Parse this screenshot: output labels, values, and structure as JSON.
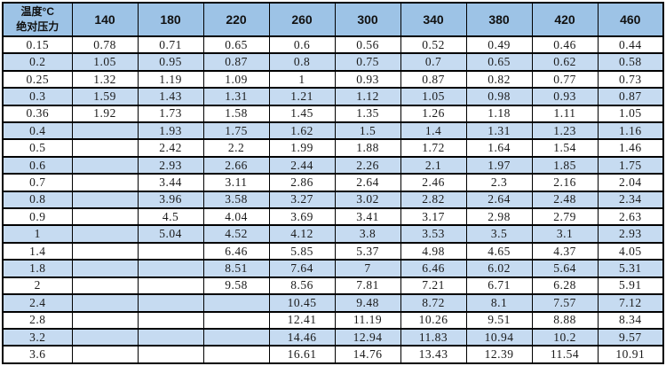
{
  "colors": {
    "header_bg": "#9dc3e6",
    "stripe_bg": "#c6dbf1",
    "border": "#000000",
    "text": "#1a1a1a"
  },
  "chart_data": {
    "type": "table",
    "title": "",
    "corner_header": {
      "line1": "温度°C",
      "line2": "绝对压力"
    },
    "column_headers": [
      "140",
      "180",
      "220",
      "260",
      "300",
      "340",
      "380",
      "420",
      "460"
    ],
    "rows": [
      {
        "label": "0.15",
        "values": [
          "0.78",
          "0.71",
          "0.65",
          "0.6",
          "0.56",
          "0.52",
          "0.49",
          "0.46",
          "0.44"
        ]
      },
      {
        "label": "0.2",
        "values": [
          "1.05",
          "0.95",
          "0.87",
          "0.8",
          "0.75",
          "0.7",
          "0.65",
          "0.62",
          "0.58"
        ]
      },
      {
        "label": "0.25",
        "values": [
          "1.32",
          "1.19",
          "1.09",
          "1",
          "0.93",
          "0.87",
          "0.82",
          "0.77",
          "0.73"
        ]
      },
      {
        "label": "0.3",
        "values": [
          "1.59",
          "1.43",
          "1.31",
          "1.21",
          "1.12",
          "1.05",
          "0.98",
          "0.93",
          "0.87"
        ]
      },
      {
        "label": "0.36",
        "values": [
          "1.92",
          "1.73",
          "1.58",
          "1.45",
          "1.35",
          "1.26",
          "1.18",
          "1.11",
          "1.05"
        ]
      },
      {
        "label": "0.4",
        "values": [
          "",
          "1.93",
          "1.75",
          "1.62",
          "1.5",
          "1.4",
          "1.31",
          "1.23",
          "1.16"
        ]
      },
      {
        "label": "0.5",
        "values": [
          "",
          "2.42",
          "2.2",
          "1.99",
          "1.88",
          "1.72",
          "1.64",
          "1.54",
          "1.46"
        ]
      },
      {
        "label": "0.6",
        "values": [
          "",
          "2.93",
          "2.66",
          "2.44",
          "2.26",
          "2.1",
          "1.97",
          "1.85",
          "1.75"
        ]
      },
      {
        "label": "0.7",
        "values": [
          "",
          "3.44",
          "3.11",
          "2.86",
          "2.64",
          "2.46",
          "2.3",
          "2.16",
          "2.04"
        ]
      },
      {
        "label": "0.8",
        "values": [
          "",
          "3.96",
          "3.58",
          "3.27",
          "3.02",
          "2.82",
          "2.64",
          "2.48",
          "2.34"
        ]
      },
      {
        "label": "0.9",
        "values": [
          "",
          "4.5",
          "4.04",
          "3.69",
          "3.41",
          "3.17",
          "2.98",
          "2.79",
          "2.63"
        ]
      },
      {
        "label": "1",
        "values": [
          "",
          "5.04",
          "4.52",
          "4.12",
          "3.8",
          "3.53",
          "3.5",
          "3.1",
          "2.93"
        ]
      },
      {
        "label": "1.4",
        "values": [
          "",
          "",
          "6.46",
          "5.85",
          "5.37",
          "4.98",
          "4.65",
          "4.37",
          "4.05"
        ]
      },
      {
        "label": "1.8",
        "values": [
          "",
          "",
          "8.51",
          "7.64",
          "7",
          "6.46",
          "6.02",
          "5.64",
          "5.31"
        ]
      },
      {
        "label": "2",
        "values": [
          "",
          "",
          "9.58",
          "8.56",
          "7.81",
          "7.21",
          "6.71",
          "6.28",
          "5.91"
        ]
      },
      {
        "label": "2.4",
        "values": [
          "",
          "",
          "",
          "10.45",
          "9.48",
          "8.72",
          "8.1",
          "7.57",
          "7.12"
        ]
      },
      {
        "label": "2.8",
        "values": [
          "",
          "",
          "",
          "12.41",
          "11.19",
          "10.26",
          "9.51",
          "8.88",
          "8.34"
        ]
      },
      {
        "label": "3.2",
        "values": [
          "",
          "",
          "",
          "14.46",
          "12.94",
          "11.83",
          "10.94",
          "10.2",
          "9.57"
        ]
      },
      {
        "label": "3.6",
        "values": [
          "",
          "",
          "",
          "16.61",
          "14.76",
          "13.43",
          "12.39",
          "11.54",
          "10.91"
        ]
      }
    ]
  }
}
